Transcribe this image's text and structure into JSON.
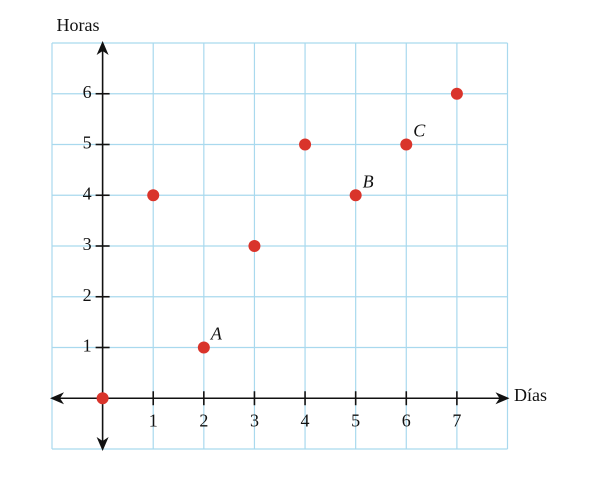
{
  "chart_data": {
    "type": "scatter",
    "x_label": "Días",
    "y_label": "Horas",
    "x": [
      0,
      1,
      2,
      3,
      4,
      5,
      6,
      7
    ],
    "values": [
      0,
      4,
      1,
      3,
      5,
      4,
      5,
      6
    ],
    "point_labels": [
      null,
      null,
      "A",
      null,
      null,
      "B",
      "C",
      null
    ],
    "color": "#d9342b",
    "xlim": [
      -1,
      8
    ],
    "ylim": [
      -1,
      7
    ],
    "xticks": [
      1,
      2,
      3,
      4,
      5,
      6,
      7
    ],
    "yticks": [
      1,
      2,
      3,
      4,
      5,
      6
    ],
    "grid": true
  }
}
